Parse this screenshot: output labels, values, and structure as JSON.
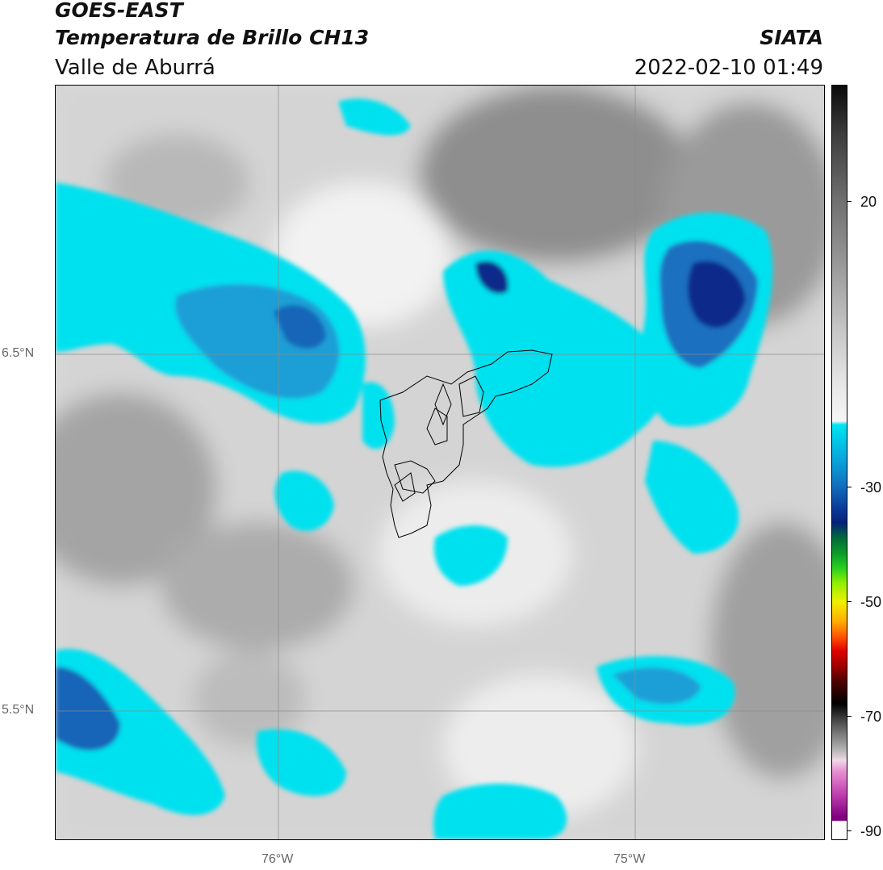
{
  "header": {
    "title_line1": "GOES-EAST",
    "title_line2": "Temperatura de Brillo CH13",
    "subtitle": "Valle de Aburrá",
    "brand": "SIATA",
    "datetime": "2022-02-10 01:49"
  },
  "axes": {
    "lat_labels": [
      "6.5°N",
      "5.5°N"
    ],
    "lon_labels": [
      "76°W",
      "75°W"
    ],
    "gridlines": true
  },
  "colorbar": {
    "ticks": [
      "20",
      "-30",
      "-50",
      "-70",
      "-90"
    ],
    "cold_color": "#0a2a8a",
    "cyan_color": "#00e1f0",
    "warm_gray": "#9a9a9a"
  },
  "map": {
    "region": "Valle de Aburrá",
    "outline_color": "#000000"
  }
}
